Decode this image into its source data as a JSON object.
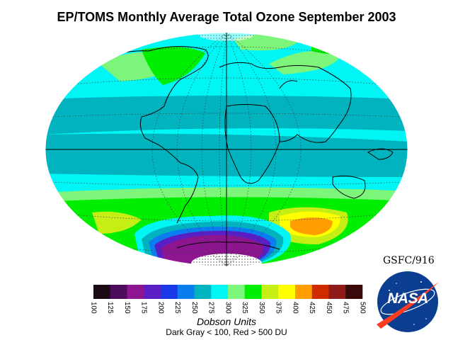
{
  "title": "EP/TOMS Monthly Average Total Ozone September 2003",
  "colorbar": {
    "colors": [
      "#1a0a16",
      "#4d0b5c",
      "#8e1590",
      "#5a1fc4",
      "#1a37e8",
      "#0a7ef0",
      "#00b3be",
      "#00f5f5",
      "#7df57a",
      "#00ee00",
      "#c5ee14",
      "#ffff00",
      "#ff9e00",
      "#d02a00",
      "#8e1a1a",
      "#3a0a0a"
    ],
    "labels": [
      "100",
      "125",
      "150",
      "175",
      "200",
      "225",
      "250",
      "275",
      "300",
      "325",
      "350",
      "375",
      "400",
      "425",
      "450",
      "475",
      "500"
    ]
  },
  "units_label": "Dobson Units",
  "note": "Dark Gray < 100, Red > 500 DU",
  "credit": "GSFC/916",
  "logo": {
    "text": "NASA",
    "icon": "nasa-meatball-icon"
  },
  "map": {
    "projection": "aitoff",
    "graticule": true,
    "equator": true,
    "prime_meridian": true
  }
}
